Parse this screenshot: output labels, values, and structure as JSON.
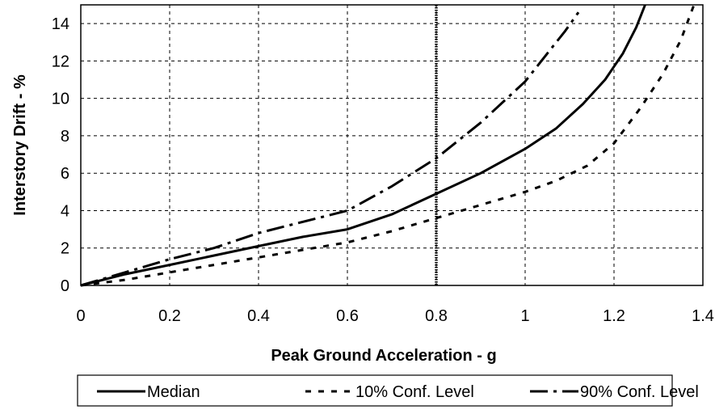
{
  "chart_data": {
    "type": "line",
    "title": "",
    "xlabel": "Peak Ground Acceleration - g",
    "ylabel": "Interstory Drift - %",
    "xlim": [
      0,
      1.4
    ],
    "ylim": [
      0,
      15
    ],
    "xticks": [
      0,
      0.2,
      0.4,
      0.6,
      0.8,
      1,
      1.2,
      1.4
    ],
    "yticks": [
      0,
      2,
      4,
      6,
      8,
      10,
      12,
      14
    ],
    "grid": "horizontal dashed and vertical dashed",
    "legend_position": "bottom",
    "reference_line": {
      "x": 0.8,
      "style": "dotted vertical"
    },
    "series": [
      {
        "name": "Median",
        "style": "solid",
        "x": [
          0,
          0.1,
          0.2,
          0.3,
          0.4,
          0.5,
          0.6,
          0.7,
          0.8,
          0.9,
          1.0,
          1.07,
          1.13,
          1.18,
          1.22,
          1.25,
          1.27
        ],
        "y": [
          0,
          0.6,
          1.1,
          1.6,
          2.1,
          2.6,
          3.0,
          3.8,
          4.9,
          6.0,
          7.3,
          8.4,
          9.7,
          11.0,
          12.4,
          13.8,
          15.0
        ]
      },
      {
        "name": "10% Conf. Level",
        "style": "dashed",
        "x": [
          0,
          0.1,
          0.2,
          0.3,
          0.4,
          0.5,
          0.6,
          0.7,
          0.8,
          0.9,
          1.0,
          1.07,
          1.14,
          1.2,
          1.26,
          1.31,
          1.35,
          1.38
        ],
        "y": [
          0,
          0.3,
          0.7,
          1.1,
          1.5,
          1.9,
          2.3,
          2.9,
          3.6,
          4.3,
          5.0,
          5.6,
          6.4,
          7.6,
          9.5,
          11.3,
          13.1,
          15.0
        ]
      },
      {
        "name": "90% Conf. Level",
        "style": "dash-dot",
        "x": [
          0,
          0.1,
          0.2,
          0.3,
          0.4,
          0.5,
          0.6,
          0.7,
          0.8,
          0.9,
          1.0,
          1.05,
          1.09,
          1.12
        ],
        "y": [
          0,
          0.7,
          1.4,
          2.0,
          2.8,
          3.4,
          4.0,
          5.3,
          6.8,
          8.7,
          10.9,
          12.4,
          13.6,
          14.6
        ]
      }
    ]
  }
}
